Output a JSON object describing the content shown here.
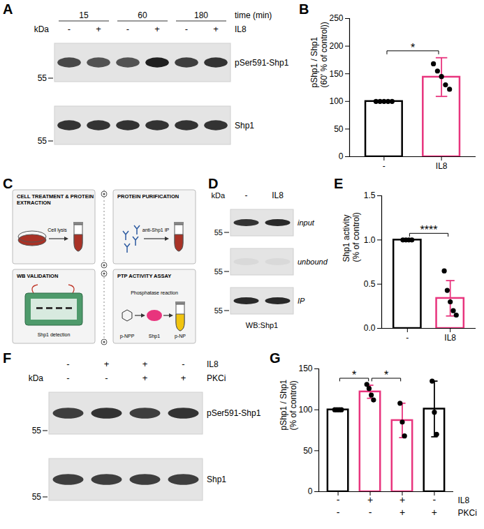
{
  "chart_data": [
    {
      "panel": "B",
      "type": "bar",
      "categories": [
        "-",
        "IL8"
      ],
      "values": [
        100,
        144
      ],
      "error": [
        0,
        35
      ],
      "points": [
        [
          100,
          100,
          100,
          100,
          100
        ],
        [
          168,
          155,
          145,
          130,
          122
        ]
      ],
      "colors": [
        "#000000",
        "#e8347d"
      ],
      "y_label": "pShp1 / Shp1\n(60' % of control))",
      "ylim": [
        0,
        250
      ],
      "yticks": [
        0,
        50,
        100,
        150,
        200,
        250
      ],
      "annotations": [
        {
          "from": 0,
          "to": 1,
          "label": "*"
        }
      ]
    },
    {
      "panel": "E",
      "type": "bar",
      "categories": [
        "-",
        "IL8"
      ],
      "values": [
        1,
        0.34
      ],
      "error": [
        0,
        0.2
      ],
      "points": [
        [
          1,
          1,
          1,
          1
        ],
        [
          0.65,
          0.43,
          0.3,
          0.2,
          0.15
        ]
      ],
      "colors": [
        "#000000",
        "#e8347d"
      ],
      "y_label": "Shp1 activity\n(% of control)",
      "ylim": [
        0,
        1.5
      ],
      "yticks": [
        {
          "value": 0,
          "label": "0.0"
        },
        0.5,
        {
          "value": 1,
          "label": "1.0"
        },
        1.5
      ],
      "annotations": [
        {
          "from": 0,
          "to": 1,
          "label": "****"
        }
      ]
    },
    {
      "panel": "G",
      "type": "bar",
      "categories": [
        null,
        null,
        null,
        null
      ],
      "values": [
        100,
        122,
        87,
        101
      ],
      "error": [
        0,
        8,
        21,
        34
      ],
      "points": [
        [
          100,
          100,
          100,
          100
        ],
        [
          131,
          126,
          118,
          112
        ],
        [
          108,
          85,
          68
        ],
        [
          135,
          97,
          70
        ]
      ],
      "colors": [
        "#000000",
        "#e8347d",
        "#e8347d",
        "#000000"
      ],
      "y_label": "pShp1 / Shp1\n(% of control)",
      "ylim": [
        0,
        150
      ],
      "yticks": [
        0,
        50,
        100,
        150
      ],
      "x_rows": [
        {
          "label": "IL8",
          "values": [
            "-",
            "+",
            "+",
            "-"
          ]
        },
        {
          "label": "PKCi",
          "values": [
            "-",
            "-",
            "+",
            "+"
          ]
        }
      ],
      "annotations": [
        {
          "from": 0,
          "to": 1,
          "label": "*"
        },
        {
          "from": 1,
          "to": 2,
          "label": "*"
        }
      ]
    }
  ],
  "blots": [
    {
      "panel": "A",
      "marker_unit": "kDa",
      "header": {
        "label": "time (min)",
        "groups": [
          "15",
          "60",
          "180"
        ]
      },
      "lane_rows": [
        {
          "label": "IL8",
          "values": [
            "-",
            "+",
            "-",
            "+",
            "-",
            "+"
          ]
        }
      ],
      "rows": [
        {
          "name": "pSer591-Shp1",
          "marker": 55,
          "intensity": [
            0.75,
            0.7,
            0.7,
            0.95,
            0.8,
            0.85
          ]
        },
        {
          "name": "Shp1",
          "marker": 55,
          "intensity": [
            0.85,
            0.85,
            0.85,
            0.85,
            0.85,
            0.85
          ]
        }
      ]
    },
    {
      "panel": "D",
      "marker_unit": "kDa",
      "lane_rows": [
        {
          "values": [
            "-",
            "IL8"
          ]
        }
      ],
      "row_label_style": "italic",
      "rows": [
        {
          "name": "input",
          "marker": 55,
          "intensity": [
            0.85,
            0.9
          ]
        },
        {
          "name": "unbound",
          "marker": 55,
          "intensity": [
            0.05,
            0.05
          ]
        },
        {
          "name": "IP",
          "marker": 55,
          "intensity": [
            0.9,
            0.9
          ]
        }
      ],
      "footer": "WB:Shp1"
    },
    {
      "panel": "F",
      "marker_unit": "kDa",
      "lane_rows": [
        {
          "label": "IL8",
          "values": [
            "-",
            "+",
            "+",
            "-"
          ]
        },
        {
          "label": "PKCi",
          "values": [
            "-",
            "-",
            "+",
            "+"
          ]
        }
      ],
      "rows": [
        {
          "name": "pSer591-Shp1",
          "marker": 55,
          "intensity": [
            0.8,
            0.85,
            0.8,
            0.85
          ]
        },
        {
          "name": "Shp1",
          "marker": 55,
          "intensity": [
            0.8,
            0.8,
            0.8,
            0.8
          ]
        }
      ]
    }
  ],
  "diagram": {
    "panel": "C",
    "steps": [
      {
        "title": "CELL TREATMENT & PROTEIN EXTRACTION",
        "labels": [
          "Cell lysis"
        ]
      },
      {
        "title": "PROTEIN PURIFICATION",
        "labels": [
          "anti-Shp1 IP"
        ]
      },
      {
        "title": "WB VALIDATION",
        "labels": [
          "Shp1 detection"
        ]
      },
      {
        "title": "PTP ACTIVITY ASSAY",
        "labels": [
          "Phosphatase reaction",
          "p-NPP",
          "Shp1",
          "p-NP"
        ]
      }
    ]
  }
}
